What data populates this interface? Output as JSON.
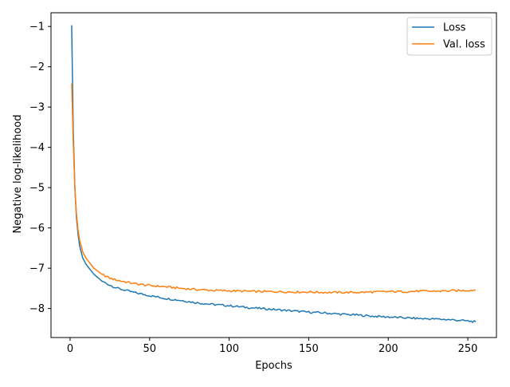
{
  "chart_data": {
    "type": "line",
    "title": "",
    "xlabel": "Epochs",
    "ylabel": "Negative log-likelihood",
    "xlim": [
      -12,
      268
    ],
    "ylim": [
      -8.72,
      -0.66
    ],
    "x_ticks": [
      0,
      50,
      100,
      150,
      200,
      250
    ],
    "x_tick_labels": [
      "0",
      "50",
      "100",
      "150",
      "200",
      "250"
    ],
    "y_ticks": [
      -1,
      -2,
      -3,
      -4,
      -5,
      -6,
      -7,
      -8
    ],
    "y_tick_labels": [
      "−1",
      "−2",
      "−3",
      "−4",
      "−5",
      "−6",
      "−7",
      "−8"
    ],
    "grid": false,
    "legend_position": "upper right",
    "x": [
      1,
      2,
      3,
      4,
      5,
      6,
      7,
      8,
      10,
      12,
      15,
      20,
      25,
      30,
      40,
      50,
      60,
      70,
      80,
      90,
      100,
      110,
      120,
      130,
      140,
      150,
      160,
      170,
      180,
      190,
      200,
      210,
      220,
      230,
      240,
      250,
      255
    ],
    "series": [
      {
        "name": "Loss",
        "color": "#1f77b4",
        "values": [
          -0.97,
          -3.6,
          -5.0,
          -5.75,
          -6.15,
          -6.45,
          -6.6,
          -6.75,
          -6.9,
          -7.0,
          -7.15,
          -7.32,
          -7.42,
          -7.5,
          -7.6,
          -7.68,
          -7.75,
          -7.8,
          -7.86,
          -7.9,
          -7.93,
          -7.97,
          -8.0,
          -8.03,
          -8.06,
          -8.09,
          -8.11,
          -8.14,
          -8.16,
          -8.19,
          -8.21,
          -8.23,
          -8.25,
          -8.26,
          -8.28,
          -8.31,
          -8.33
        ]
      },
      {
        "name": "Val. loss",
        "color": "#ff7f0e",
        "values": [
          -2.42,
          -3.9,
          -5.0,
          -5.65,
          -6.05,
          -6.3,
          -6.45,
          -6.6,
          -6.75,
          -6.85,
          -7.0,
          -7.15,
          -7.25,
          -7.3,
          -7.38,
          -7.43,
          -7.46,
          -7.5,
          -7.53,
          -7.55,
          -7.56,
          -7.57,
          -7.58,
          -7.58,
          -7.59,
          -7.59,
          -7.6,
          -7.6,
          -7.6,
          -7.59,
          -7.58,
          -7.58,
          -7.57,
          -7.57,
          -7.56,
          -7.55,
          -7.54
        ]
      }
    ]
  }
}
